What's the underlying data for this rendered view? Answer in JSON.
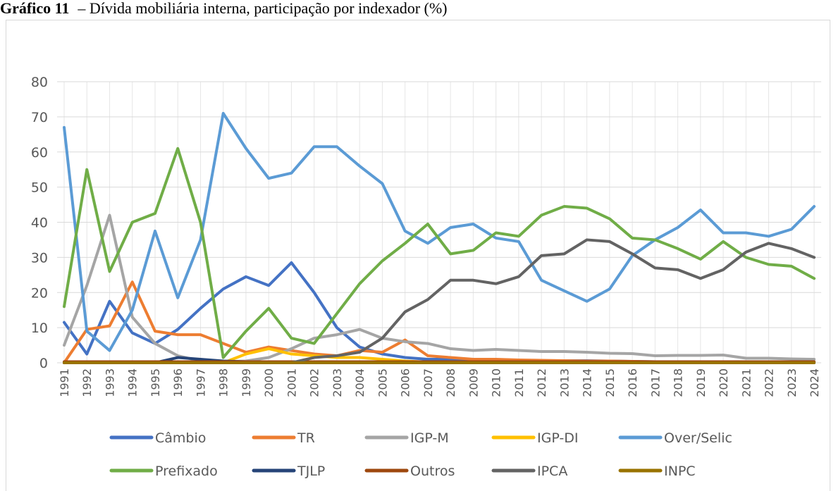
{
  "chart_data": {
    "type": "line",
    "title_label": "Gráfico 11",
    "title": "– Dívida mobiliária interna, participação por indexador (%)",
    "categories": [
      "1991",
      "1992",
      "1993",
      "1994",
      "1995",
      "1996",
      "1997",
      "1998",
      "1999",
      "2000",
      "2001",
      "2002",
      "2003",
      "2004",
      "2005",
      "2006",
      "2007",
      "2008",
      "2009",
      "2010",
      "2011",
      "2012",
      "2013",
      "2014",
      "2015",
      "2016",
      "2017",
      "2018",
      "2019",
      "2020",
      "2021",
      "2022",
      "2023",
      "2024"
    ],
    "ylim": [
      0,
      80
    ],
    "yticks": [
      0,
      10,
      20,
      30,
      40,
      50,
      60,
      70,
      80
    ],
    "grid": true,
    "legend": "bottom",
    "series": [
      {
        "name": "Câmbio",
        "color": "#4472c4",
        "values": [
          11.5,
          2.5,
          17.5,
          8.5,
          5.5,
          9.5,
          15.5,
          21,
          24.5,
          22,
          28.5,
          20,
          10,
          4.5,
          2.5,
          1.5,
          1,
          1,
          0.8,
          0.7,
          0.6,
          0.6,
          0.6,
          0.6,
          0.5,
          0.4,
          0.3,
          0.3,
          0.3,
          0.3,
          0.2,
          0.2,
          0.2,
          0.2
        ]
      },
      {
        "name": "TR",
        "color": "#ed7d31",
        "values": [
          0,
          9.5,
          10.5,
          23,
          9,
          8,
          8,
          5.5,
          3,
          4.5,
          3.5,
          2.5,
          2,
          3.5,
          3,
          6.5,
          2,
          1.5,
          1,
          1,
          0.8,
          0.7,
          0.6,
          0.5,
          0.5,
          0.4,
          0.3,
          0.3,
          0.3,
          0.3,
          0.2,
          0.2,
          0.2,
          0.2
        ]
      },
      {
        "name": "IGP-M",
        "color": "#a5a5a5",
        "values": [
          5,
          22,
          42,
          13,
          5.5,
          2,
          0.5,
          0.3,
          0.5,
          1.5,
          4,
          7,
          8,
          9.5,
          7,
          6,
          5.5,
          4,
          3.5,
          3.8,
          3.5,
          3.2,
          3.2,
          3,
          2.7,
          2.6,
          2,
          2.1,
          2.1,
          2.2,
          1.3,
          1.3,
          1.1,
          1
        ]
      },
      {
        "name": "IGP-DI",
        "color": "#ffc000",
        "values": [
          0,
          0,
          0,
          0,
          0,
          0,
          0,
          0,
          2.5,
          4,
          2.5,
          2,
          1.5,
          1.5,
          1,
          0.5,
          0.2,
          0.1,
          0.1,
          0.1,
          0.1,
          0.1,
          0.1,
          0.1,
          0.1,
          0.1,
          0.1,
          0.1,
          0.1,
          0.1,
          0.1,
          0.1,
          0.1,
          0.1
        ]
      },
      {
        "name": "Over/Selic",
        "color": "#5b9bd5",
        "values": [
          67,
          9,
          3.5,
          15,
          37.5,
          18.5,
          35,
          71,
          61,
          52.5,
          54,
          61.5,
          61.5,
          56,
          51,
          37.5,
          34,
          38.5,
          39.5,
          35.5,
          34.5,
          23.5,
          20.5,
          17.5,
          21,
          30.5,
          35,
          38.5,
          43.5,
          37,
          37,
          36,
          38,
          44.5
        ]
      },
      {
        "name": "Prefixado",
        "color": "#70ad47",
        "values": [
          16,
          55,
          26,
          40,
          42.5,
          61,
          40,
          1.5,
          9,
          15.5,
          7,
          5.5,
          14,
          22.5,
          29,
          34,
          39.5,
          31,
          32,
          37,
          36,
          42,
          44.5,
          44,
          41,
          35.5,
          35,
          32.5,
          29.5,
          34.5,
          30,
          28,
          27.5,
          24
        ]
      },
      {
        "name": "TJLP",
        "color": "#264478",
        "values": [
          0,
          0,
          0,
          0,
          0,
          1.5,
          1,
          0.5,
          0.3,
          0.3,
          0.2,
          0.2,
          0.2,
          0,
          0,
          0,
          0,
          0,
          0,
          0,
          0,
          0,
          0,
          0,
          0,
          0,
          0,
          0,
          0,
          0,
          0,
          0,
          0,
          0
        ]
      },
      {
        "name": "Outros",
        "color": "#9e480e",
        "values": [
          0.3,
          0.3,
          0.3,
          0.3,
          0.3,
          0.3,
          0.3,
          0.3,
          0.3,
          0.3,
          0.3,
          0.3,
          0.3,
          0.3,
          0.3,
          0.3,
          0.3,
          0.3,
          0.3,
          0.3,
          0.3,
          0.3,
          0.3,
          0.3,
          0.3,
          0.3,
          0.3,
          0.3,
          0.3,
          0.3,
          0.3,
          0.3,
          0.3,
          0.3
        ]
      },
      {
        "name": "IPCA",
        "color": "#636363",
        "values": [
          0,
          0,
          0,
          0,
          0,
          0,
          0,
          0,
          0,
          0,
          0,
          1.5,
          2,
          3,
          7,
          14.5,
          18,
          23.5,
          23.5,
          22.5,
          24.5,
          30.5,
          31,
          35,
          34.5,
          31,
          27,
          26.5,
          24,
          26.5,
          31.5,
          34,
          32.5,
          30
        ]
      },
      {
        "name": "INPC",
        "color": "#997300",
        "values": [
          0,
          0,
          0,
          0,
          0,
          0,
          0,
          0,
          0,
          0,
          0,
          0,
          0,
          0,
          0,
          0,
          0,
          0,
          0,
          0,
          0,
          0,
          0,
          0,
          0,
          0,
          0,
          0,
          0,
          0,
          0,
          0,
          0,
          0
        ]
      }
    ]
  }
}
